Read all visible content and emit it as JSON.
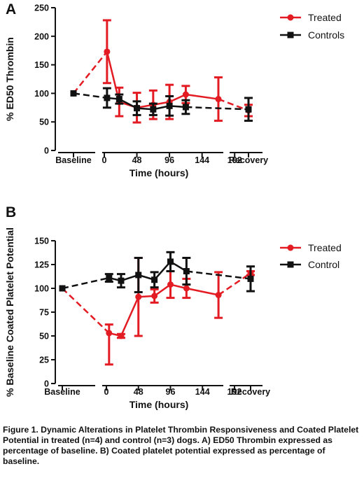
{
  "panels": {
    "a_letter": "A",
    "b_letter": "B"
  },
  "caption": "Figure 1. Dynamic Alterations in Platelet Thrombin Responsiveness and Coated Platelet Potential in treated (n=4) and control (n=3) dogs.  A) ED50 Thrombin expressed as percentage of baseline. B) Coated platelet potential expressed as percentage of baseline.",
  "colors": {
    "treated": "#e31b23",
    "control": "#111111"
  },
  "chart_data": [
    {
      "type": "line",
      "panel": "A",
      "xlabel": "Time (hours)",
      "ylabel": "% ED50 Thrombin",
      "ylim": [
        0,
        250
      ],
      "yticks": [
        0,
        50,
        100,
        150,
        200,
        250
      ],
      "xticks": [
        "Baseline",
        "0",
        "48",
        "96",
        "144",
        "192",
        "Recovery"
      ],
      "legend_position": "top-right",
      "series": [
        {
          "name": "Treated",
          "color": "#e31b23",
          "marker": "circle",
          "points": [
            {
              "x": "Baseline",
              "y": 100,
              "err": 0
            },
            {
              "x": 4,
              "y": 173,
              "err": 55
            },
            {
              "x": 22,
              "y": 85,
              "err": 25
            },
            {
              "x": 48,
              "y": 75,
              "err": 26
            },
            {
              "x": 72,
              "y": 80,
              "err": 25
            },
            {
              "x": 96,
              "y": 85,
              "err": 30
            },
            {
              "x": 120,
              "y": 98,
              "err": 15
            },
            {
              "x": 168,
              "y": 90,
              "err": 38
            },
            {
              "x": "Recovery",
              "y": 70,
              "err": 10
            }
          ]
        },
        {
          "name": "Controls",
          "color": "#111111",
          "marker": "square",
          "points": [
            {
              "x": "Baseline",
              "y": 100,
              "err": 0
            },
            {
              "x": 4,
              "y": 92,
              "err": 17
            },
            {
              "x": 22,
              "y": 90,
              "err": 8
            },
            {
              "x": 48,
              "y": 74,
              "err": 12
            },
            {
              "x": 72,
              "y": 72,
              "err": 10
            },
            {
              "x": 96,
              "y": 78,
              "err": 17
            },
            {
              "x": 120,
              "y": 76,
              "err": 12
            },
            {
              "x": "Recovery",
              "y": 72,
              "err": 20
            }
          ]
        }
      ]
    },
    {
      "type": "line",
      "panel": "B",
      "xlabel": "Time (hours)",
      "ylabel": "% Baseline Coated  Platelet  Potential",
      "ylim": [
        0,
        150
      ],
      "yticks": [
        0,
        25,
        50,
        75,
        100,
        125,
        150
      ],
      "xticks": [
        "Baseline",
        "0",
        "48",
        "96",
        "144",
        "192",
        "Recovery"
      ],
      "legend_position": "top-right",
      "series": [
        {
          "name": "Treated",
          "color": "#e31b23",
          "marker": "circle",
          "points": [
            {
              "x": "Baseline",
              "y": 100,
              "err": 0
            },
            {
              "x": 4,
              "y": 53,
              "err": 9,
              "err_low": 33
            },
            {
              "x": 22,
              "y": 50,
              "err": 2
            },
            {
              "x": 48,
              "y": 91,
              "err": 41
            },
            {
              "x": 72,
              "y": 92,
              "err": 7
            },
            {
              "x": 96,
              "y": 104,
              "err": 14
            },
            {
              "x": 120,
              "y": 100,
              "err": 10
            },
            {
              "x": 168,
              "y": 93,
              "err": 24
            },
            {
              "x": "Recovery",
              "y": 116,
              "err": 2
            }
          ]
        },
        {
          "name": "Control",
          "color": "#111111",
          "marker": "square",
          "points": [
            {
              "x": "Baseline",
              "y": 100,
              "err": 0
            },
            {
              "x": 4,
              "y": 111,
              "err": 4
            },
            {
              "x": 22,
              "y": 108,
              "err": 7
            },
            {
              "x": 48,
              "y": 114,
              "err": 18
            },
            {
              "x": 72,
              "y": 109,
              "err": 8
            },
            {
              "x": 96,
              "y": 128,
              "err": 10
            },
            {
              "x": 120,
              "y": 118,
              "err": 14
            },
            {
              "x": "Recovery",
              "y": 110,
              "err": 13
            }
          ]
        }
      ]
    }
  ]
}
